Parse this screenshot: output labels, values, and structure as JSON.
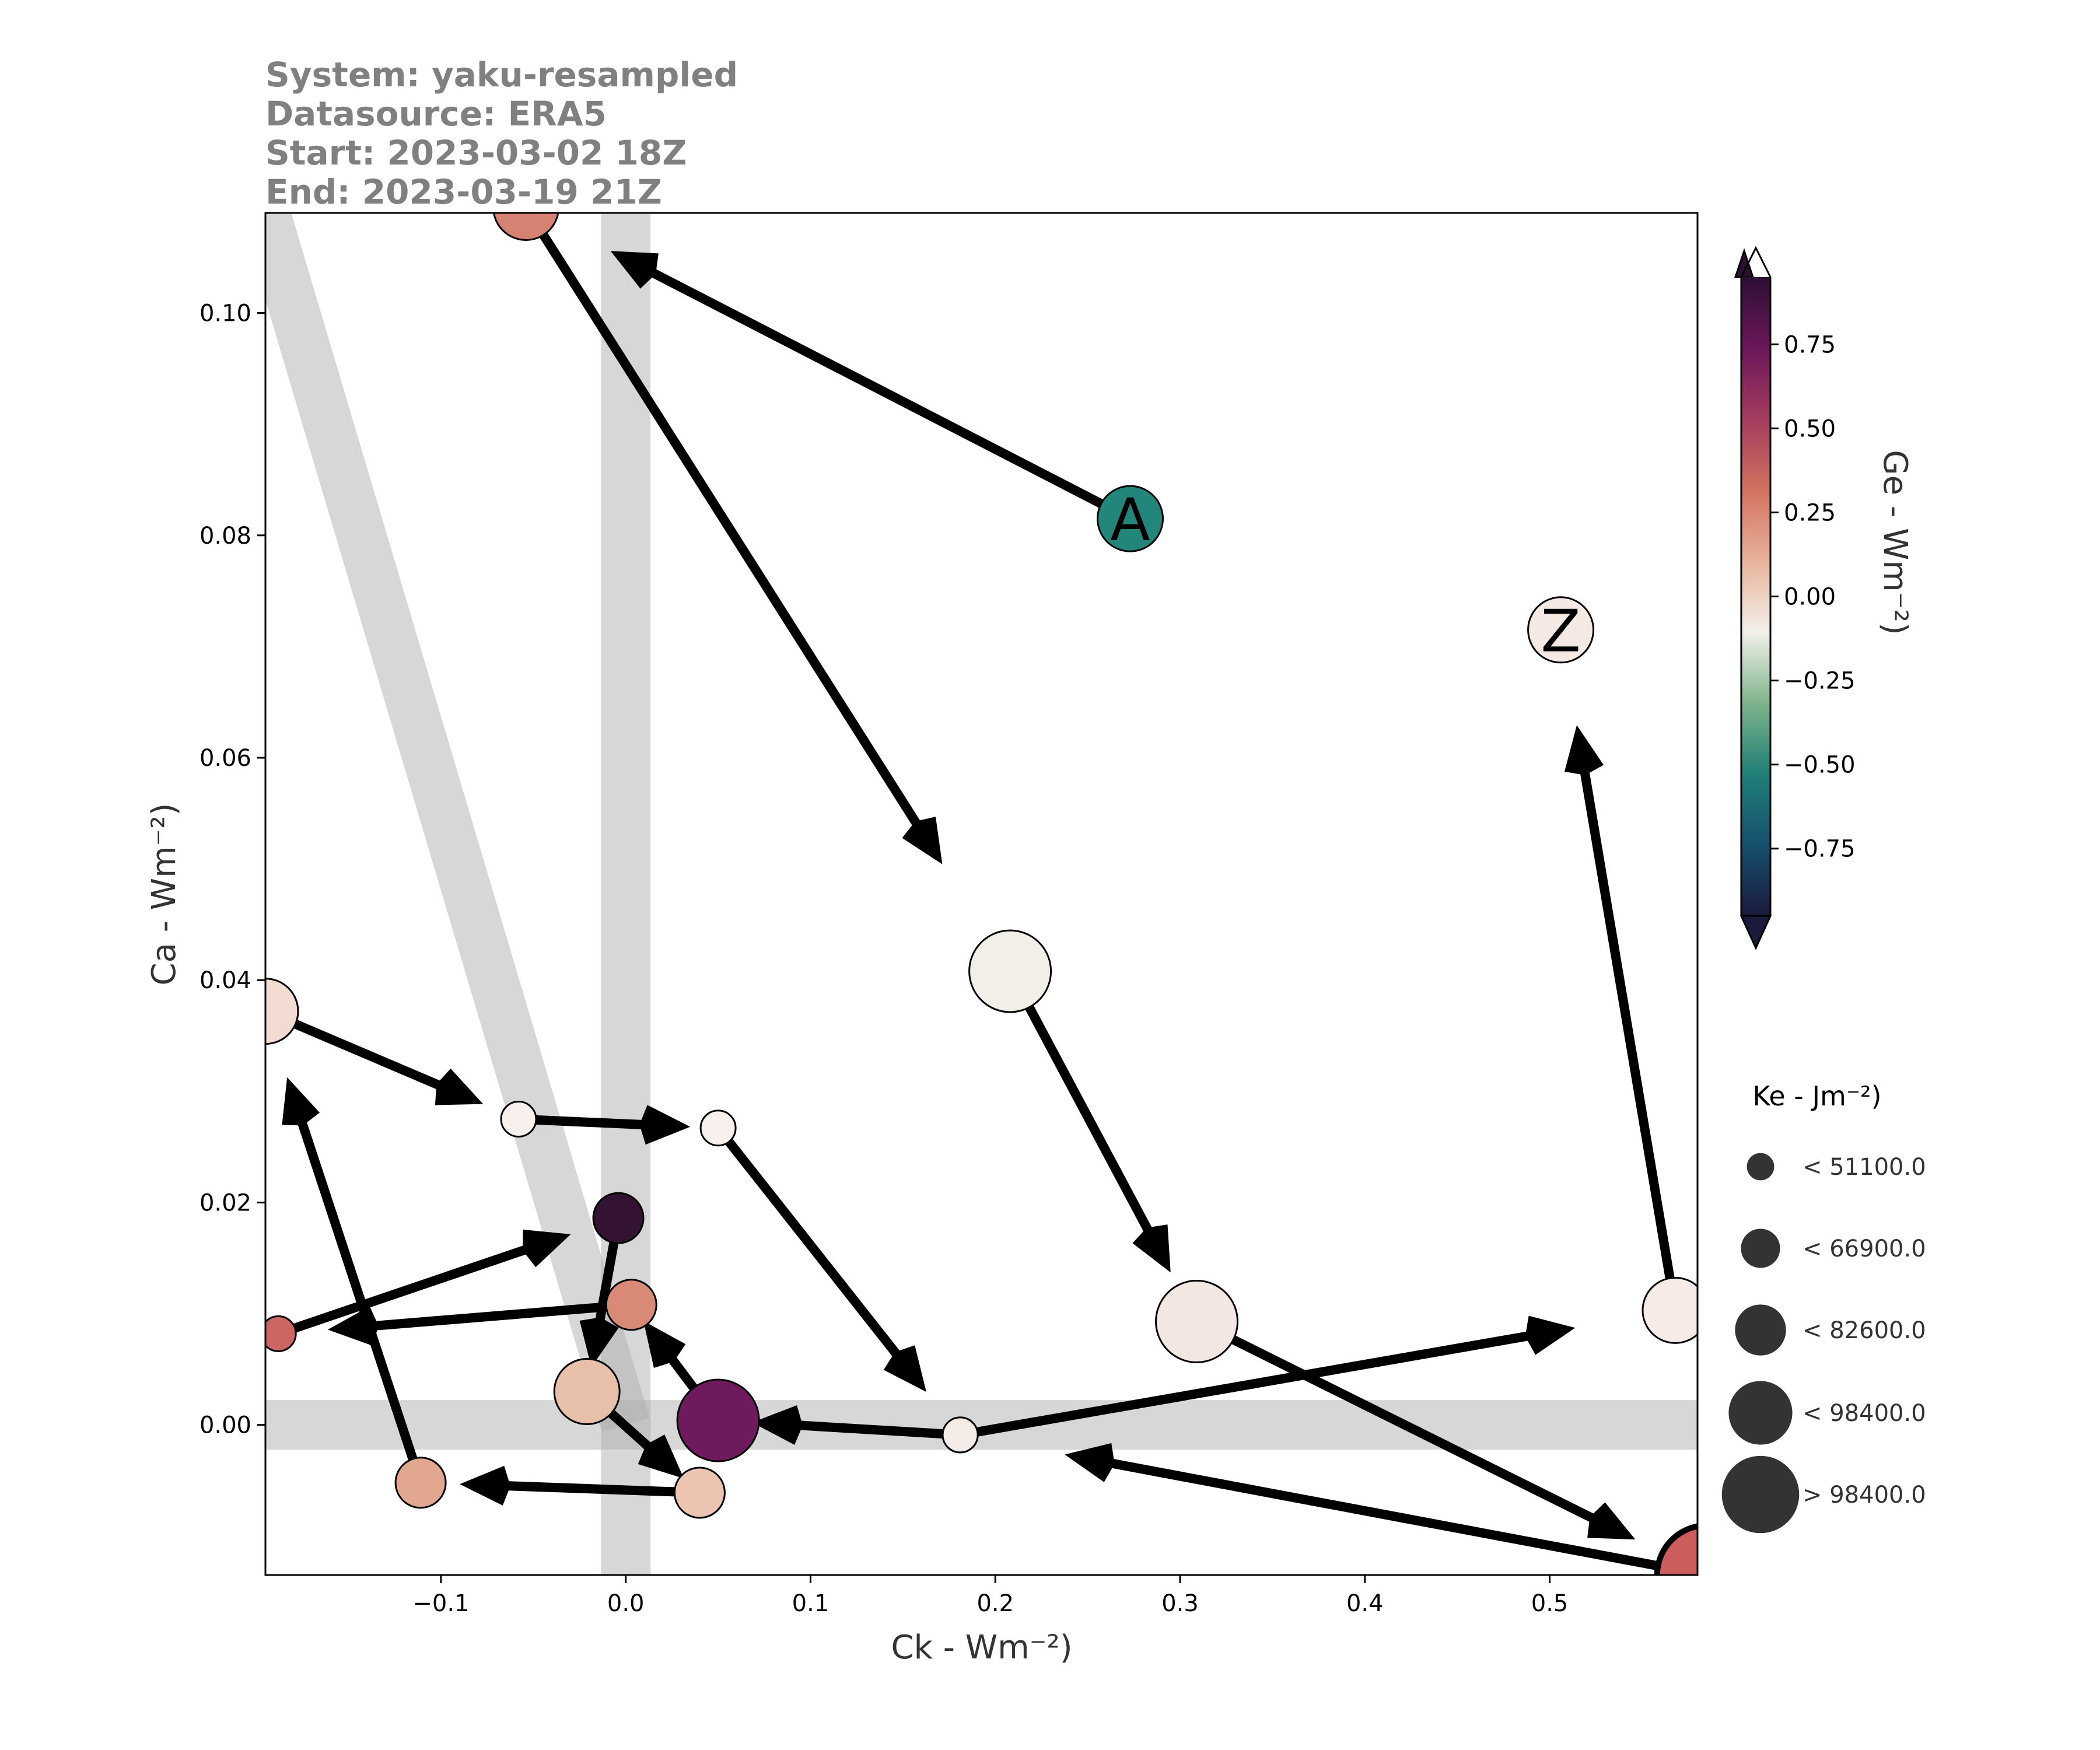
{
  "header": {
    "system": "System: yaku-resampled",
    "datasource": "Datasource: ERA5",
    "start": "Start: 2023-03-02 18Z",
    "end": "End: 2023-03-19 21Z"
  },
  "chart_data": {
    "type": "scatter",
    "xlabel": "Ck - Wm⁻²)",
    "ylabel": "Ca - Wm⁻²)",
    "xlim": [
      -0.195,
      0.58
    ],
    "ylim": [
      -0.0135,
      0.109
    ],
    "x_ticks": [
      -0.1,
      0.0,
      0.1,
      0.2,
      0.3,
      0.4,
      0.5
    ],
    "x_tick_labels": [
      "−0.1",
      "0.0",
      "0.1",
      "0.2",
      "0.3",
      "0.4",
      "0.5"
    ],
    "y_ticks": [
      0.0,
      0.02,
      0.04,
      0.06,
      0.08,
      0.1
    ],
    "y_tick_labels": [
      "0.00",
      "0.02",
      "0.04",
      "0.06",
      "0.08",
      "0.10"
    ],
    "grid": false,
    "reference_bands": [
      "x=0",
      "y=0",
      "Ck=-Ca diagonal"
    ],
    "colorbar": {
      "label": "Ge - Wm⁻²)",
      "range": [
        -0.95,
        0.95
      ],
      "ticks": [
        0.75,
        0.5,
        0.25,
        0.0,
        -0.25,
        -0.5,
        -0.75
      ],
      "tick_labels": [
        "0.75",
        "0.50",
        "0.25",
        "0.00",
        "−0.25",
        "−0.50",
        "−0.75"
      ],
      "colors": [
        "#1a1a3d",
        "#16506e",
        "#1f7f76",
        "#7fb48c",
        "#f2f0ea",
        "#e8b39b",
        "#d2715f",
        "#a33c5e",
        "#6b175a",
        "#2d0f33"
      ]
    },
    "size_legend": {
      "title": "Ke - Jm⁻²)",
      "entries": [
        "< 51100.0",
        "< 66900.0",
        "< 82600.0",
        "< 98400.0",
        "> 98400.0"
      ],
      "marker_color": "#333333"
    },
    "start_marker": "A",
    "end_marker": "Z",
    "points": [
      {
        "x": 0.273,
        "y": 0.0815,
        "color": "#22877a",
        "size_class": 3
      },
      {
        "x": -0.054,
        "y": 0.1095,
        "color": "#d58272",
        "size_class": 3
      },
      {
        "x": 0.208,
        "y": 0.0408,
        "color": "#f2eee8",
        "size_class": 4
      },
      {
        "x": 0.309,
        "y": 0.0093,
        "color": "#f3e7e2",
        "size_class": 4
      },
      {
        "x": 0.585,
        "y": -0.0135,
        "color": "#cc5d5c",
        "size_class": 5
      },
      {
        "x": 0.181,
        "y": -0.0009,
        "color": "#f5ece7",
        "size_class": 1
      },
      {
        "x": 0.05,
        "y": 0.0004,
        "color": "#6e1a5c",
        "size_class": 4
      },
      {
        "x": 0.003,
        "y": 0.0108,
        "color": "#d88a76",
        "size_class": 2
      },
      {
        "x": -0.188,
        "y": 0.0082,
        "color": "#cc6663",
        "size_class": 1
      },
      {
        "x": -0.004,
        "y": 0.0186,
        "color": "#341232",
        "size_class": 2
      },
      {
        "x": -0.021,
        "y": 0.003,
        "color": "#e8bfa9",
        "size_class": 3
      },
      {
        "x": 0.04,
        "y": -0.0061,
        "color": "#ecc4b1",
        "size_class": 2
      },
      {
        "x": -0.111,
        "y": -0.0052,
        "color": "#e2a88f",
        "size_class": 2
      },
      {
        "x": -0.195,
        "y": 0.0372,
        "color": "#f2dcd2",
        "size_class": 3
      },
      {
        "x": -0.058,
        "y": 0.0275,
        "color": "#f8f0ec",
        "size_class": 1
      },
      {
        "x": 0.05,
        "y": 0.0267,
        "color": "#f8f0ec",
        "size_class": 1
      },
      {
        "x": 0.181,
        "y": -0.0009,
        "color": "#f5ece7",
        "size_class": 1
      },
      {
        "x": 0.568,
        "y": 0.0103,
        "color": "#f6ebe6",
        "size_class": 3
      },
      {
        "x": 0.506,
        "y": 0.0715,
        "color": "#f5e9e4",
        "size_class": 3
      }
    ]
  }
}
